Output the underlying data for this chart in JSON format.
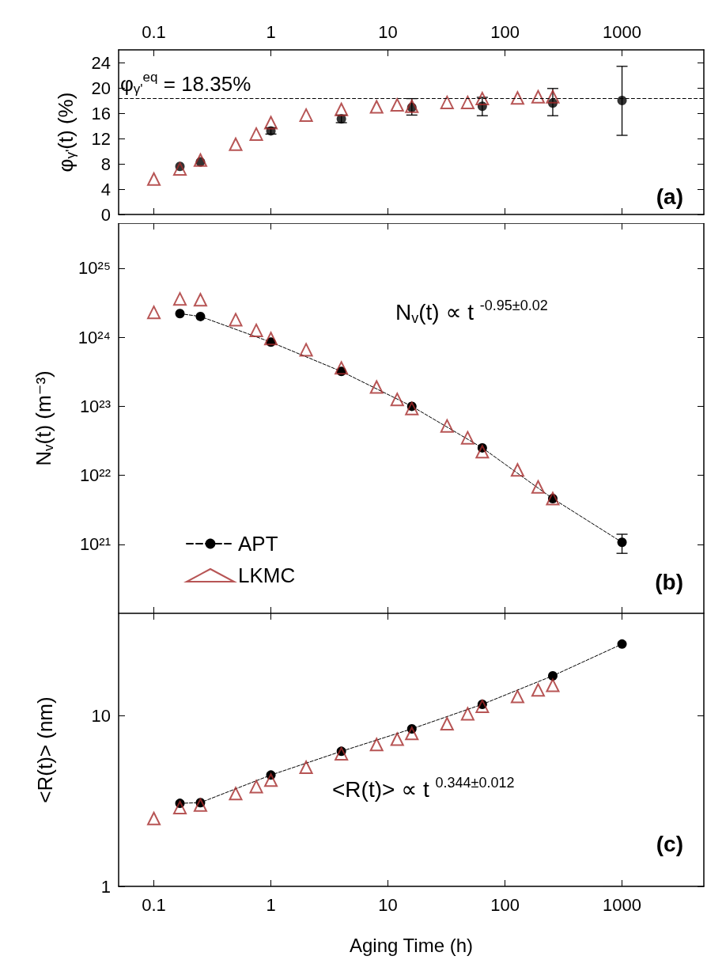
{
  "chart_data": [
    {
      "type": "scatter",
      "ylabel": "φ$_{γ'}$(t) (%)",
      "log": "x",
      "xlim": [
        0.05,
        5000
      ],
      "xticks": [
        0.1,
        1,
        10,
        100,
        1000
      ],
      "ylim": [
        0,
        26
      ],
      "yticks": [
        0,
        4,
        8,
        12,
        16,
        20,
        24
      ],
      "ref_lines": [
        {
          "axis": "y",
          "value": 18.35,
          "label": "φ$_{γ'}$$^{eq}$ = 18.35%",
          "color": "#000000",
          "line_style": "dashed"
        }
      ],
      "annotations": [
        "(a)"
      ],
      "series": [
        {
          "marker": "circle",
          "color": "#000000",
          "x": [
            0.167,
            0.25,
            1,
            4,
            16,
            64,
            256,
            1000
          ],
          "values": [
            7.6,
            8.3,
            13.2,
            15.1,
            16.9,
            17.1,
            17.6,
            18.0
          ],
          "errors": [
            null,
            null,
            [
              12.7,
              13.7
            ],
            [
              14.5,
              15.7
            ],
            [
              15.7,
              18.3
            ],
            [
              15.6,
              18.5
            ],
            [
              15.6,
              19.9
            ],
            [
              12.5,
              23.4
            ]
          ]
        },
        {
          "marker": "triangle",
          "color": "#a52a2a",
          "x": [
            0.1,
            0.167,
            0.25,
            0.5,
            0.75,
            1,
            2,
            4,
            8,
            12,
            16,
            32,
            48,
            64,
            128,
            192,
            256
          ],
          "values": [
            5.6,
            7.2,
            8.6,
            11.1,
            12.7,
            14.5,
            15.7,
            16.6,
            17.0,
            17.3,
            17.1,
            17.7,
            17.7,
            18.3,
            18.4,
            18.6,
            18.6
          ]
        }
      ]
    },
    {
      "type": "scatter",
      "ylabel": "N$_{v}$(t) (m⁻³)",
      "log": "xy",
      "xlim": [
        0.05,
        5000
      ],
      "xticks": [
        0.1,
        1,
        10,
        100,
        1000
      ],
      "tick_labels": "y",
      "ylim": [
        1e+20,
        4.5e+25
      ],
      "yticks": [
        {
          "value": 1e+21,
          "label": "10²¹"
        },
        {
          "value": 1e+22,
          "label": "10²²"
        },
        {
          "value": 1e+23,
          "label": "10²³"
        },
        {
          "value": 1e+24,
          "label": "10²⁴"
        },
        {
          "value": 1e+25,
          "label": "10²⁵"
        }
      ],
      "legend": "bottom left",
      "annotations": [
        "N$_{v}$(t) ∝ t $^{-0.95±0.02}$",
        "(b)"
      ],
      "series": [
        {
          "name": "APT",
          "type": "line",
          "line_style": "dashed",
          "marker": "circle",
          "color": "#000000",
          "x": [
            0.167,
            0.25,
            1,
            4,
            16,
            64,
            256,
            1000
          ],
          "values": [
            2.2e+24,
            2e+24,
            8.5e+23,
            3.2e+23,
            1e+23,
            2.5e+22,
            4.6e+21,
            1.07e+21
          ],
          "errors": [
            null,
            null,
            null,
            null,
            null,
            null,
            null,
            [
              7.4e+20,
              1.4e+21
            ]
          ]
        },
        {
          "name": "LKMC",
          "marker": "triangle",
          "color": "#a52a2a",
          "x": [
            0.1,
            0.167,
            0.25,
            0.5,
            0.75,
            1,
            2,
            4,
            8,
            12,
            16,
            32,
            48,
            64,
            128,
            192,
            256
          ],
          "values": [
            2.3e+24,
            3.6e+24,
            3.5e+24,
            1.8e+24,
            1.26e+24,
            9.6e+23,
            6.6e+23,
            3.6e+23,
            1.9e+23,
            1.26e+23,
            9.3e+22,
            5.2e+22,
            3.5e+22,
            2.2e+22,
            1.2e+22,
            6.8e+21,
            4.6e+21
          ]
        }
      ]
    },
    {
      "type": "scatter",
      "ylabel": "<R(t)> (nm)",
      "xlabel": "Aging Time (h)",
      "log": "xy",
      "xlim": [
        0.05,
        5000
      ],
      "xticks": [
        0.1,
        1,
        10,
        100,
        1000
      ],
      "ylim": [
        1,
        40
      ],
      "yticks": [
        1,
        10
      ],
      "annotations": [
        "<R(t)> ∝ t $^{0.344±0.012}$",
        "(c)"
      ],
      "series": [
        {
          "type": "line",
          "line_style": "dashed",
          "marker": "circle",
          "color": "#000000",
          "x": [
            0.167,
            0.25,
            1,
            4,
            16,
            64,
            256,
            1000
          ],
          "values": [
            3.07,
            3.1,
            4.5,
            6.2,
            8.4,
            11.7,
            17.2,
            26.4
          ]
        },
        {
          "marker": "triangle",
          "color": "#a52a2a",
          "x": [
            0.1,
            0.167,
            0.25,
            0.5,
            0.75,
            1,
            2,
            4,
            8,
            12,
            16,
            32,
            48,
            64,
            128,
            192,
            256
          ],
          "values": [
            2.5,
            2.9,
            3.0,
            3.5,
            3.85,
            4.2,
            5.0,
            6.0,
            6.8,
            7.3,
            7.9,
            9.0,
            10.3,
            11.4,
            13.0,
            14.2,
            15.1
          ]
        }
      ]
    }
  ]
}
